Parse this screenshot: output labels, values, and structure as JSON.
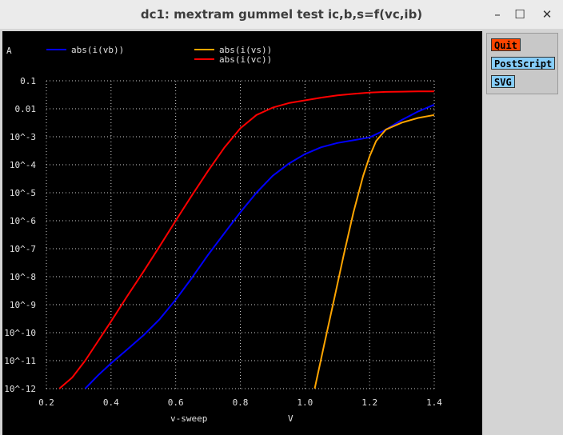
{
  "window": {
    "title": "dc1: mextram gummel test ic,b,s=f(vc,ib)",
    "minimize": "–",
    "maximize": "☐",
    "close": "✕"
  },
  "buttons": {
    "quit": "Quit",
    "postscript": "PostScript",
    "svg": "SVG"
  },
  "chart_data": {
    "type": "line",
    "ylabel": "A",
    "xlabel": "v-sweep",
    "xunit": "V",
    "xlim": [
      0.2,
      1.4
    ],
    "ylog": true,
    "ylim": [
      1e-12,
      0.1
    ],
    "grid": true,
    "x_ticks": [
      "0.2",
      "0.4",
      "0.6",
      "0.8",
      "1.0",
      "1.2",
      "1.4"
    ],
    "y_ticks": [
      "0.1",
      "0.01",
      "10^-3",
      "10^-4",
      "10^-5",
      "10^-6",
      "10^-7",
      "10^-8",
      "10^-9",
      "10^-10",
      "10^-11",
      "10^-12"
    ],
    "series": [
      {
        "name": "abs(i(vb))",
        "color": "#0000ff",
        "points": [
          [
            0.32,
            1e-12
          ],
          [
            0.36,
            3e-12
          ],
          [
            0.4,
            8e-12
          ],
          [
            0.45,
            2.5e-11
          ],
          [
            0.5,
            8e-11
          ],
          [
            0.55,
            3e-10
          ],
          [
            0.6,
            1.5e-09
          ],
          [
            0.65,
            9e-09
          ],
          [
            0.7,
            6e-08
          ],
          [
            0.75,
            3.5e-07
          ],
          [
            0.8,
            2e-06
          ],
          [
            0.85,
            1e-05
          ],
          [
            0.9,
            4e-05
          ],
          [
            0.95,
            0.00011
          ],
          [
            1.0,
            0.00024
          ],
          [
            1.05,
            0.00042
          ],
          [
            1.1,
            0.0006
          ],
          [
            1.15,
            0.00075
          ],
          [
            1.2,
            0.00095
          ],
          [
            1.25,
            0.0018
          ],
          [
            1.3,
            0.004
          ],
          [
            1.35,
            0.008
          ],
          [
            1.4,
            0.014
          ]
        ]
      },
      {
        "name": "abs(i(vs))",
        "color": "#ffa500",
        "points": [
          [
            1.03,
            1e-12
          ],
          [
            1.06,
            4e-11
          ],
          [
            1.09,
            1.5e-09
          ],
          [
            1.12,
            6e-08
          ],
          [
            1.15,
            2e-06
          ],
          [
            1.18,
            4e-05
          ],
          [
            1.2,
            0.0002
          ],
          [
            1.22,
            0.0007
          ],
          [
            1.25,
            0.0018
          ],
          [
            1.3,
            0.0032
          ],
          [
            1.35,
            0.0047
          ],
          [
            1.4,
            0.006
          ]
        ]
      },
      {
        "name": "abs(i(vc))",
        "color": "#ff0000",
        "points": [
          [
            0.24,
            1e-12
          ],
          [
            0.28,
            2.5e-12
          ],
          [
            0.32,
            1e-11
          ],
          [
            0.36,
            5e-11
          ],
          [
            0.4,
            2.5e-10
          ],
          [
            0.45,
            2e-09
          ],
          [
            0.5,
            1.5e-08
          ],
          [
            0.55,
            1.2e-07
          ],
          [
            0.6,
            1e-06
          ],
          [
            0.65,
            8e-06
          ],
          [
            0.7,
            6e-05
          ],
          [
            0.75,
            0.0004
          ],
          [
            0.8,
            0.002
          ],
          [
            0.85,
            0.006
          ],
          [
            0.9,
            0.011
          ],
          [
            0.95,
            0.016
          ],
          [
            1.0,
            0.02
          ],
          [
            1.05,
            0.025
          ],
          [
            1.1,
            0.03
          ],
          [
            1.15,
            0.034
          ],
          [
            1.2,
            0.038
          ],
          [
            1.25,
            0.04
          ],
          [
            1.3,
            0.041
          ],
          [
            1.35,
            0.042
          ],
          [
            1.4,
            0.042
          ]
        ]
      }
    ]
  }
}
